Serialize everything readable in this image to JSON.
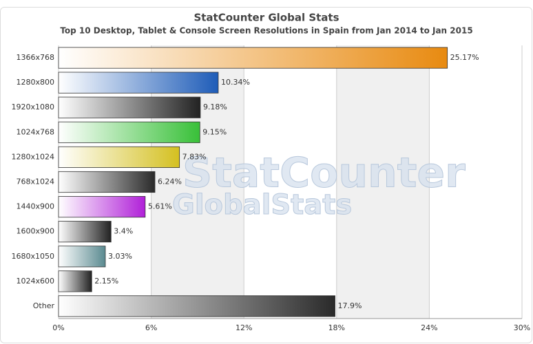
{
  "chart_data": {
    "type": "bar",
    "orientation": "horizontal",
    "title": "StatCounter Global Stats",
    "subtitle": "Top 10 Desktop, Tablet & Console Screen Resolutions in Spain from Jan 2014 to Jan 2015",
    "watermark": [
      "StatCounter",
      "GlobalStats"
    ],
    "categories": [
      "1366x768",
      "1280x800",
      "1920x1080",
      "1024x768",
      "1280x1024",
      "768x1024",
      "1440x900",
      "1600x900",
      "1680x1050",
      "1024x600",
      "Other"
    ],
    "values": [
      25.17,
      10.34,
      9.18,
      9.15,
      7.83,
      6.24,
      5.61,
      3.4,
      3.03,
      2.15,
      17.9
    ],
    "value_labels": [
      "25.17%",
      "10.34%",
      "9.18%",
      "9.15%",
      "7.83%",
      "6.24%",
      "5.61%",
      "3.4%",
      "3.03%",
      "2.15%",
      "17.9%"
    ],
    "colors": [
      "#e88a10",
      "#1e5cb8",
      "#222222",
      "#38c038",
      "#d4c020",
      "#2a2a2a",
      "#b020d8",
      "#222222",
      "#5a8a90",
      "#222222",
      "#2a2a2a"
    ],
    "xlim": [
      0,
      30
    ],
    "xticks": [
      {
        "value": 0,
        "label": "0%"
      },
      {
        "value": 6,
        "label": "6%"
      },
      {
        "value": 12,
        "label": "12%"
      },
      {
        "value": 18,
        "label": "18%"
      },
      {
        "value": 24,
        "label": "24%"
      },
      {
        "value": 30,
        "label": "30%"
      }
    ],
    "grid": true
  }
}
